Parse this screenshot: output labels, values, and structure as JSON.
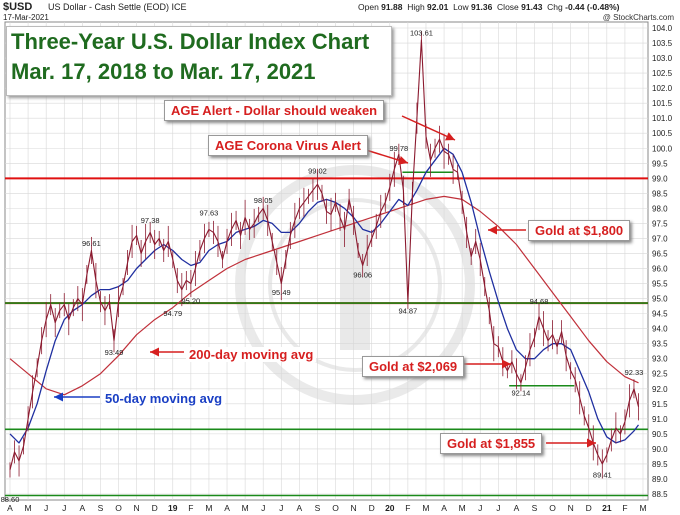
{
  "header": {
    "symbol": "$USD",
    "description": "US Dollar - Cash Settle (EOD)",
    "exchange": "ICE",
    "date": "17-Mar-2021",
    "open_label": "Open",
    "open": "91.88",
    "high_label": "High",
    "high": "92.01",
    "low_label": "Low",
    "low": "91.36",
    "close_label": "Close",
    "close": "91.43",
    "chg_label": "Chg",
    "chg": "-0.44 (-0.48%)",
    "credit": "@ StockCharts.com"
  },
  "title": {
    "line1": "Three-Year U.S. Dollar Index Chart",
    "line2": "Mar. 17, 2018 to Mar. 17, 2021"
  },
  "annotations": {
    "age_alert": "AGE Alert - Dollar should weaken",
    "corona": "AGE Corona Virus Alert",
    "gold_1800": "Gold at $1,800",
    "gold_2069": "Gold at $2,069",
    "gold_1855": "Gold at $1,855",
    "ma200": "200-day moving avg",
    "ma50": "50-day moving avg"
  },
  "colors": {
    "price": "#8b1a2f",
    "ma50": "#1f2fa0",
    "ma200": "#c0303a",
    "red_line": "#e01010",
    "green_line": "#1a8a1a",
    "annotation_red": "#d61f1f",
    "annotation_blue": "#1a3fc4",
    "title_green": "#1f6b1f",
    "grid": "#d8d8d8"
  },
  "chart_data": {
    "type": "line",
    "ylim": [
      88.5,
      104.0
    ],
    "y_ticks": [
      "88.5",
      "89.0",
      "89.5",
      "90.0",
      "90.5",
      "91.0",
      "91.5",
      "92.0",
      "92.5",
      "93.0",
      "93.5",
      "94.0",
      "94.5",
      "95.0",
      "95.5",
      "96.0",
      "96.5",
      "97.0",
      "97.5",
      "98.0",
      "98.5",
      "99.0",
      "99.5",
      "100.0",
      "100.5",
      "101.0",
      "101.5",
      "102.0",
      "102.5",
      "103.0",
      "103.5",
      "104.0"
    ],
    "x_ticks": [
      "A",
      "M",
      "J",
      "J",
      "A",
      "S",
      "O",
      "N",
      "D",
      "19",
      "F",
      "M",
      "A",
      "M",
      "J",
      "J",
      "A",
      "S",
      "O",
      "N",
      "D",
      "20",
      "F",
      "M",
      "A",
      "M",
      "J",
      "J",
      "A",
      "S",
      "O",
      "N",
      "D",
      "21",
      "F",
      "M"
    ],
    "horizontal_lines": [
      {
        "value": 99.0,
        "color": "red"
      },
      {
        "value": 94.85,
        "color": "red"
      },
      {
        "value": 94.85,
        "color": "green"
      },
      {
        "value": 90.65,
        "color": "green"
      },
      {
        "value": 88.45,
        "color": "green"
      }
    ],
    "price": {
      "name": "",
      "points": [
        [
          0.0,
          89.3
        ],
        [
          0.25,
          89.9
        ],
        [
          0.5,
          89.6
        ],
        [
          0.75,
          90.1
        ],
        [
          1.0,
          91.0
        ],
        [
          1.25,
          91.9
        ],
        [
          1.5,
          92.7
        ],
        [
          1.75,
          93.6
        ],
        [
          2.0,
          94.3
        ],
        [
          2.25,
          94.8
        ],
        [
          2.5,
          94.2
        ],
        [
          2.75,
          94.6
        ],
        [
          3.0,
          94.8
        ],
        [
          3.25,
          94.3
        ],
        [
          3.5,
          94.7
        ],
        [
          3.75,
          95.0
        ],
        [
          4.0,
          94.8
        ],
        [
          4.25,
          95.8
        ],
        [
          4.5,
          96.6
        ],
        [
          4.75,
          95.6
        ],
        [
          5.0,
          94.9
        ],
        [
          5.25,
          94.6
        ],
        [
          5.5,
          94.9
        ],
        [
          5.75,
          93.6
        ],
        [
          6.0,
          94.9
        ],
        [
          6.25,
          95.4
        ],
        [
          6.5,
          96.2
        ],
        [
          6.75,
          96.9
        ],
        [
          7.0,
          97.1
        ],
        [
          7.25,
          96.5
        ],
        [
          7.5,
          96.9
        ],
        [
          7.75,
          97.2
        ],
        [
          8.0,
          96.8
        ],
        [
          8.25,
          97.0
        ],
        [
          8.5,
          96.6
        ],
        [
          8.75,
          96.9
        ],
        [
          9.0,
          96.3
        ],
        [
          9.25,
          95.6
        ],
        [
          9.5,
          95.3
        ],
        [
          9.75,
          95.6
        ],
        [
          10.0,
          95.5
        ],
        [
          10.25,
          96.0
        ],
        [
          10.5,
          96.6
        ],
        [
          10.75,
          97.0
        ],
        [
          11.0,
          97.3
        ],
        [
          11.25,
          97.2
        ],
        [
          11.5,
          96.9
        ],
        [
          11.75,
          96.3
        ],
        [
          12.0,
          96.9
        ],
        [
          12.25,
          97.3
        ],
        [
          12.5,
          97.6
        ],
        [
          12.75,
          97.1
        ],
        [
          13.0,
          97.7
        ],
        [
          13.25,
          97.3
        ],
        [
          13.5,
          97.5
        ],
        [
          13.75,
          97.8
        ],
        [
          14.0,
          98.0
        ],
        [
          14.25,
          97.6
        ],
        [
          14.5,
          96.9
        ],
        [
          14.75,
          96.2
        ],
        [
          15.0,
          95.5
        ],
        [
          15.25,
          96.3
        ],
        [
          15.5,
          97.1
        ],
        [
          15.75,
          97.6
        ],
        [
          16.0,
          98.0
        ],
        [
          16.25,
          98.2
        ],
        [
          16.5,
          98.4
        ],
        [
          16.75,
          98.6
        ],
        [
          17.0,
          98.8
        ],
        [
          17.25,
          98.5
        ],
        [
          17.5,
          97.9
        ],
        [
          17.75,
          97.8
        ],
        [
          18.0,
          98.2
        ],
        [
          18.25,
          97.7
        ],
        [
          18.5,
          97.3
        ],
        [
          18.75,
          98.3
        ],
        [
          19.0,
          97.6
        ],
        [
          19.25,
          96.6
        ],
        [
          19.5,
          96.1
        ],
        [
          19.75,
          96.6
        ],
        [
          20.0,
          97.0
        ],
        [
          20.25,
          97.4
        ],
        [
          20.5,
          97.9
        ],
        [
          20.75,
          98.2
        ],
        [
          21.0,
          98.7
        ],
        [
          21.25,
          99.3
        ],
        [
          21.5,
          99.8
        ],
        [
          21.75,
          98.6
        ],
        [
          22.0,
          94.9
        ],
        [
          22.25,
          98.5
        ],
        [
          22.5,
          101.0
        ],
        [
          22.75,
          103.6
        ],
        [
          23.0,
          100.4
        ],
        [
          23.25,
          99.6
        ],
        [
          23.5,
          100.0
        ],
        [
          23.75,
          100.3
        ],
        [
          24.0,
          99.9
        ],
        [
          24.25,
          99.8
        ],
        [
          24.5,
          99.3
        ],
        [
          24.75,
          99.2
        ],
        [
          25.0,
          98.2
        ],
        [
          25.25,
          97.2
        ],
        [
          25.5,
          96.4
        ],
        [
          25.75,
          96.9
        ],
        [
          26.0,
          96.3
        ],
        [
          26.25,
          95.4
        ],
        [
          26.5,
          94.6
        ],
        [
          26.75,
          93.5
        ],
        [
          27.0,
          93.4
        ],
        [
          27.25,
          92.9
        ],
        [
          27.5,
          92.6
        ],
        [
          27.75,
          92.9
        ],
        [
          28.0,
          92.5
        ],
        [
          28.25,
          92.2
        ],
        [
          28.5,
          92.7
        ],
        [
          28.75,
          93.3
        ],
        [
          29.0,
          93.7
        ],
        [
          29.25,
          94.4
        ],
        [
          29.5,
          94.0
        ],
        [
          29.75,
          93.6
        ],
        [
          30.0,
          93.8
        ],
        [
          30.25,
          93.4
        ],
        [
          30.5,
          93.9
        ],
        [
          30.75,
          93.1
        ],
        [
          31.0,
          92.6
        ],
        [
          31.25,
          92.3
        ],
        [
          31.5,
          91.7
        ],
        [
          31.75,
          91.1
        ],
        [
          32.0,
          90.7
        ],
        [
          32.25,
          90.2
        ],
        [
          32.5,
          89.8
        ],
        [
          32.75,
          89.5
        ],
        [
          33.0,
          89.8
        ],
        [
          33.25,
          90.3
        ],
        [
          33.5,
          90.7
        ],
        [
          33.75,
          90.5
        ],
        [
          34.0,
          90.9
        ],
        [
          34.25,
          91.6
        ],
        [
          34.5,
          92.0
        ],
        [
          34.75,
          91.4
        ]
      ]
    },
    "ma50": {
      "name": "50-day moving avg",
      "points": [
        [
          0.0,
          90.5
        ],
        [
          0.5,
          90.2
        ],
        [
          1.0,
          90.7
        ],
        [
          1.5,
          91.5
        ],
        [
          2.0,
          92.6
        ],
        [
          2.5,
          93.6
        ],
        [
          3.0,
          94.3
        ],
        [
          3.5,
          94.6
        ],
        [
          4.0,
          94.8
        ],
        [
          4.5,
          95.1
        ],
        [
          5.0,
          95.3
        ],
        [
          5.5,
          95.3
        ],
        [
          6.0,
          95.4
        ],
        [
          6.5,
          95.6
        ],
        [
          7.0,
          96.0
        ],
        [
          7.5,
          96.3
        ],
        [
          8.0,
          96.6
        ],
        [
          8.5,
          96.8
        ],
        [
          9.0,
          96.6
        ],
        [
          9.5,
          96.3
        ],
        [
          10.0,
          96.1
        ],
        [
          10.5,
          96.2
        ],
        [
          11.0,
          96.6
        ],
        [
          11.5,
          96.8
        ],
        [
          12.0,
          96.9
        ],
        [
          12.5,
          97.2
        ],
        [
          13.0,
          97.3
        ],
        [
          13.5,
          97.4
        ],
        [
          14.0,
          97.6
        ],
        [
          14.5,
          97.5
        ],
        [
          15.0,
          97.2
        ],
        [
          15.5,
          97.2
        ],
        [
          16.0,
          97.5
        ],
        [
          16.5,
          97.9
        ],
        [
          17.0,
          98.2
        ],
        [
          17.5,
          98.3
        ],
        [
          18.0,
          98.2
        ],
        [
          18.5,
          98.0
        ],
        [
          19.0,
          97.7
        ],
        [
          19.5,
          97.3
        ],
        [
          20.0,
          97.2
        ],
        [
          20.5,
          97.5
        ],
        [
          21.0,
          97.9
        ],
        [
          21.5,
          98.3
        ],
        [
          22.0,
          98.1
        ],
        [
          22.5,
          98.6
        ],
        [
          23.0,
          99.2
        ],
        [
          23.5,
          99.6
        ],
        [
          24.0,
          100.0
        ],
        [
          24.5,
          99.8
        ],
        [
          25.0,
          99.2
        ],
        [
          25.5,
          98.2
        ],
        [
          26.0,
          97.0
        ],
        [
          26.5,
          95.9
        ],
        [
          27.0,
          94.9
        ],
        [
          27.5,
          94.0
        ],
        [
          28.0,
          93.3
        ],
        [
          28.5,
          93.0
        ],
        [
          29.0,
          93.0
        ],
        [
          29.5,
          93.3
        ],
        [
          30.0,
          93.5
        ],
        [
          30.5,
          93.5
        ],
        [
          31.0,
          93.3
        ],
        [
          31.5,
          92.6
        ],
        [
          32.0,
          91.9
        ],
        [
          32.5,
          91.0
        ],
        [
          33.0,
          90.4
        ],
        [
          33.5,
          90.2
        ],
        [
          34.0,
          90.3
        ],
        [
          34.5,
          90.6
        ],
        [
          34.75,
          90.8
        ]
      ]
    },
    "ma200": {
      "name": "200-day moving avg",
      "points": [
        [
          0.0,
          93.0
        ],
        [
          1.0,
          92.5
        ],
        [
          2.0,
          92.0
        ],
        [
          3.0,
          91.8
        ],
        [
          4.0,
          92.1
        ],
        [
          5.0,
          92.5
        ],
        [
          6.0,
          93.1
        ],
        [
          7.0,
          93.8
        ],
        [
          8.0,
          94.3
        ],
        [
          9.0,
          94.7
        ],
        [
          10.0,
          95.2
        ],
        [
          11.0,
          95.6
        ],
        [
          12.0,
          96.0
        ],
        [
          13.0,
          96.3
        ],
        [
          14.0,
          96.5
        ],
        [
          15.0,
          96.7
        ],
        [
          16.0,
          96.9
        ],
        [
          17.0,
          97.1
        ],
        [
          18.0,
          97.3
        ],
        [
          19.0,
          97.5
        ],
        [
          20.0,
          97.7
        ],
        [
          21.0,
          97.9
        ],
        [
          22.0,
          98.1
        ],
        [
          23.0,
          98.3
        ],
        [
          24.0,
          98.4
        ],
        [
          25.0,
          98.3
        ],
        [
          26.0,
          97.9
        ],
        [
          27.0,
          97.4
        ],
        [
          28.0,
          96.8
        ],
        [
          29.0,
          96.0
        ],
        [
          30.0,
          95.2
        ],
        [
          31.0,
          94.4
        ],
        [
          32.0,
          93.6
        ],
        [
          33.0,
          92.9
        ],
        [
          34.0,
          92.4
        ],
        [
          34.75,
          92.2
        ]
      ]
    },
    "labels": [
      {
        "text": "103.61",
        "x": 22.75,
        "y": 103.61
      },
      {
        "text": "99.78",
        "x": 21.5,
        "y": 99.78
      },
      {
        "text": "99.02",
        "x": 17.0,
        "y": 99.02
      },
      {
        "text": "98.05",
        "x": 14.0,
        "y": 98.05
      },
      {
        "text": "97.63",
        "x": 11.0,
        "y": 97.63
      },
      {
        "text": "97.38",
        "x": 7.75,
        "y": 97.38
      },
      {
        "text": "96.61",
        "x": 4.5,
        "y": 96.61
      },
      {
        "text": "96.06",
        "x": 19.5,
        "y": 96.06
      },
      {
        "text": "95.49",
        "x": 15.0,
        "y": 95.49
      },
      {
        "text": "95.20",
        "x": 10.0,
        "y": 95.2
      },
      {
        "text": "94.79",
        "x": 9.0,
        "y": 94.79
      },
      {
        "text": "94.87",
        "x": 22.0,
        "y": 94.87
      },
      {
        "text": "94.68",
        "x": 29.25,
        "y": 94.68
      },
      {
        "text": "93.49",
        "x": 5.75,
        "y": 93.49
      },
      {
        "text": "92.33",
        "x": 34.5,
        "y": 92.33
      },
      {
        "text": "92.14",
        "x": 28.25,
        "y": 92.14
      },
      {
        "text": "89.41",
        "x": 32.75,
        "y": 89.41
      },
      {
        "text": "88.60",
        "x": 0.0,
        "y": 88.6
      }
    ]
  }
}
